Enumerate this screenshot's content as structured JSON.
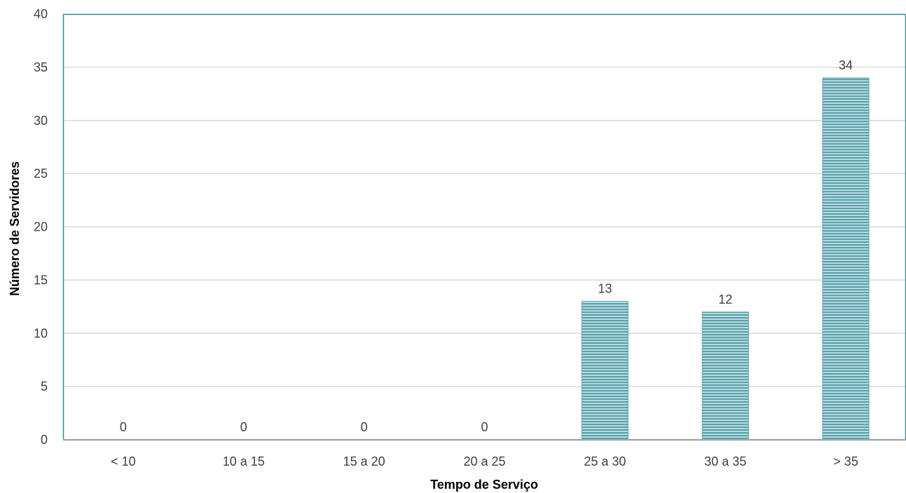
{
  "chart_data": {
    "type": "bar",
    "title": "",
    "xlabel": "Tempo de Serviço",
    "ylabel": "Número de Servidores",
    "categories": [
      "< 10",
      "10 a 15",
      "15 a 20",
      "20 a 25",
      "25 a 30",
      "30 a 35",
      "> 35"
    ],
    "values": [
      0,
      0,
      0,
      0,
      13,
      12,
      34
    ],
    "ylim": [
      0,
      40
    ],
    "yticks": [
      0,
      5,
      10,
      15,
      20,
      25,
      30,
      35,
      40
    ],
    "grid": true,
    "legend": "none",
    "data_labels": true,
    "colors": {
      "bar_fill": "#5aa3ad",
      "bar_stripe": "#d4e9ec",
      "plot_border": "#2e8b8b",
      "gridline": "#d9d9d9",
      "baseline": "#a6a6a6"
    }
  }
}
